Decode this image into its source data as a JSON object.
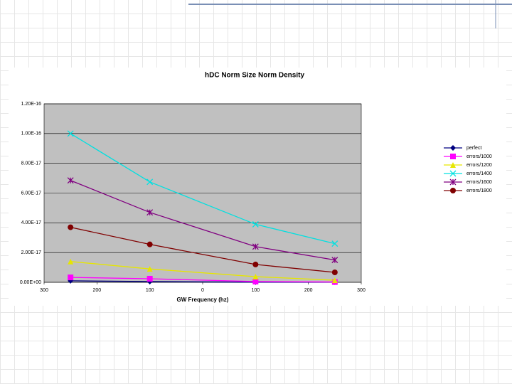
{
  "chart_data": {
    "type": "line",
    "title": "hDC Norm Size Norm Density",
    "x_label": "GW Frequency (hz)",
    "x": [
      -250,
      -100,
      100,
      250
    ],
    "xlim": [
      -300,
      300
    ],
    "xticks": [
      {
        "value": -300,
        "label": "300"
      },
      {
        "value": -200,
        "label": "200"
      },
      {
        "value": -100,
        "label": "100"
      },
      0,
      100,
      200,
      300
    ],
    "ylim": [
      0,
      1.2e-16
    ],
    "yticks": [
      {
        "value": 0,
        "label": "0.00E+00"
      },
      {
        "value": 2e-17,
        "label": "2.00E-17"
      },
      {
        "value": 4e-17,
        "label": "4.00E-17"
      },
      {
        "value": 6e-17,
        "label": "6.00E-17"
      },
      {
        "value": 8e-17,
        "label": "8.00E-17"
      },
      {
        "value": 1e-16,
        "label": "1.00E-16"
      },
      {
        "value": 1.2e-16,
        "label": "1.20E-16"
      }
    ],
    "grid": true,
    "legend": "right",
    "series": [
      {
        "name": "perfect",
        "color": "#000080",
        "marker": "diamond",
        "values": [
          1e-18,
          5e-19,
          1e-19,
          5e-20
        ]
      },
      {
        "name": "errors/1000",
        "color": "#ff00ff",
        "marker": "square",
        "values": [
          3.3e-18,
          2.4e-18,
          5e-19,
          2e-19
        ]
      },
      {
        "name": "errors/1200",
        "color": "#e6e600",
        "marker": "triangle",
        "values": [
          1.4e-17,
          9e-18,
          3.8e-18,
          1.4e-18
        ]
      },
      {
        "name": "errors/1400",
        "color": "#00e0e0",
        "marker": "x",
        "values": [
          1e-16,
          6.75e-17,
          3.9e-17,
          2.6e-17
        ]
      },
      {
        "name": "errors/1600",
        "color": "#800080",
        "marker": "star",
        "values": [
          6.85e-17,
          4.7e-17,
          2.4e-17,
          1.5e-17
        ]
      },
      {
        "name": "errors/1800",
        "color": "#800000",
        "marker": "circle",
        "values": [
          3.7e-17,
          2.55e-17,
          1.2e-17,
          6.7e-18
        ]
      }
    ]
  }
}
